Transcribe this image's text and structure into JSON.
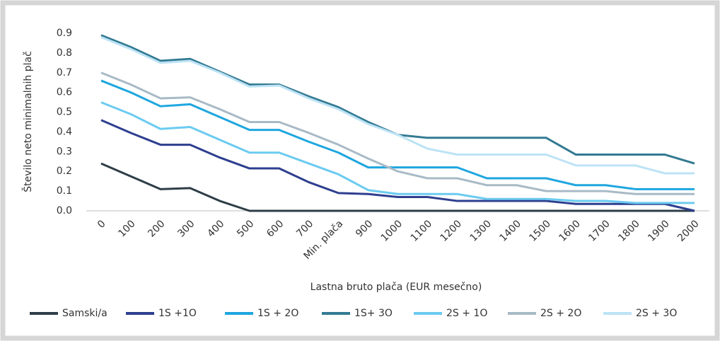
{
  "chart_data": {
    "type": "line",
    "x_label": "Lastna bruto plača (EUR mesečno)",
    "y_label": "Število neto minimalnih plač",
    "categories": [
      "0",
      "100",
      "200",
      "300",
      "400",
      "500",
      "600",
      "700",
      "Min. plača",
      "900",
      "1000",
      "1100",
      "1200",
      "1300",
      "1400",
      "1500",
      "1600",
      "1700",
      "1800",
      "1900",
      "2000"
    ],
    "ylim": [
      0,
      0.9
    ],
    "yticks": [
      {
        "value": 0,
        "label": "0.0"
      },
      0.1,
      0.2,
      0.3,
      0.4,
      0.5,
      0.6,
      0.7,
      0.8,
      0.9
    ],
    "legend": "bottom",
    "series": [
      {
        "name": "Samski/a",
        "color": "#2e3e48",
        "values": [
          0.24,
          0.175,
          0.11,
          0.115,
          0.05,
          0,
          0,
          0,
          0,
          0,
          0,
          0,
          0,
          0,
          0,
          0,
          0,
          0,
          0,
          0,
          0
        ]
      },
      {
        "name": "1S +1O",
        "color": "#2e3f8f",
        "values": [
          0.46,
          0.395,
          0.335,
          0.335,
          0.27,
          0.215,
          0.215,
          0.145,
          0.09,
          0.085,
          0.07,
          0.07,
          0.05,
          0.05,
          0.05,
          0.05,
          0.035,
          0.035,
          0.035,
          0.035,
          0
        ]
      },
      {
        "name": "1S + 2O",
        "color": "#1ea6df",
        "values": [
          0.66,
          0.6,
          0.53,
          0.54,
          0.475,
          0.41,
          0.41,
          0.35,
          0.295,
          0.22,
          0.22,
          0.22,
          0.22,
          0.165,
          0.165,
          0.165,
          0.13,
          0.13,
          0.11,
          0.11,
          0.11
        ]
      },
      {
        "name": "1S+ 3O",
        "color": "#337a92",
        "values": [
          0.89,
          0.83,
          0.76,
          0.77,
          0.705,
          0.64,
          0.64,
          0.58,
          0.525,
          0.45,
          0.385,
          0.37,
          0.37,
          0.37,
          0.37,
          0.37,
          0.285,
          0.285,
          0.285,
          0.285,
          0.24
        ]
      },
      {
        "name": "2S + 1O",
        "color": "#6bcbf0",
        "values": [
          0.55,
          0.49,
          0.415,
          0.425,
          0.36,
          0.295,
          0.295,
          0.24,
          0.185,
          0.105,
          0.085,
          0.085,
          0.085,
          0.06,
          0.06,
          0.06,
          0.05,
          0.05,
          0.04,
          0.04,
          0.04
        ]
      },
      {
        "name": "2S + 2O",
        "color": "#a8bac6",
        "values": [
          0.7,
          0.64,
          0.57,
          0.575,
          0.515,
          0.45,
          0.45,
          0.395,
          0.335,
          0.265,
          0.2,
          0.165,
          0.165,
          0.13,
          0.13,
          0.1,
          0.1,
          0.1,
          0.085,
          0.085,
          0.085
        ]
      },
      {
        "name": "2S + 3O",
        "color": "#bde3f5",
        "values": [
          0.88,
          0.82,
          0.75,
          0.76,
          0.7,
          0.63,
          0.635,
          0.57,
          0.515,
          0.44,
          0.385,
          0.315,
          0.285,
          0.285,
          0.285,
          0.285,
          0.23,
          0.23,
          0.23,
          0.19,
          0.19
        ]
      }
    ]
  }
}
